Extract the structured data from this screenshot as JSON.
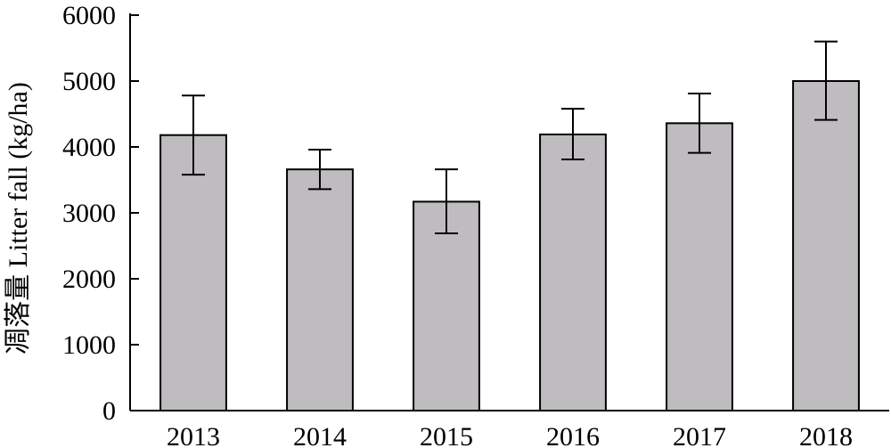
{
  "chart_data": {
    "type": "bar",
    "categories": [
      "2013",
      "2014",
      "2015",
      "2016",
      "2017",
      "2018"
    ],
    "values": [
      4180,
      3660,
      3170,
      4190,
      4360,
      5000
    ],
    "error_bars": {
      "upper": [
        4780,
        3960,
        3660,
        4580,
        4810,
        5600
      ],
      "lower": [
        3580,
        3360,
        2690,
        3810,
        3910,
        4410
      ]
    },
    "ylabel": "凋落量 Litter fall (kg/ha)",
    "xlabel": "",
    "ylim": [
      0,
      6000
    ],
    "yticks": [
      0,
      1000,
      2000,
      3000,
      4000,
      5000,
      6000
    ],
    "grid": false,
    "colors": {
      "bar_fill": "#bfbcc0",
      "bar_stroke": "#000000"
    }
  }
}
